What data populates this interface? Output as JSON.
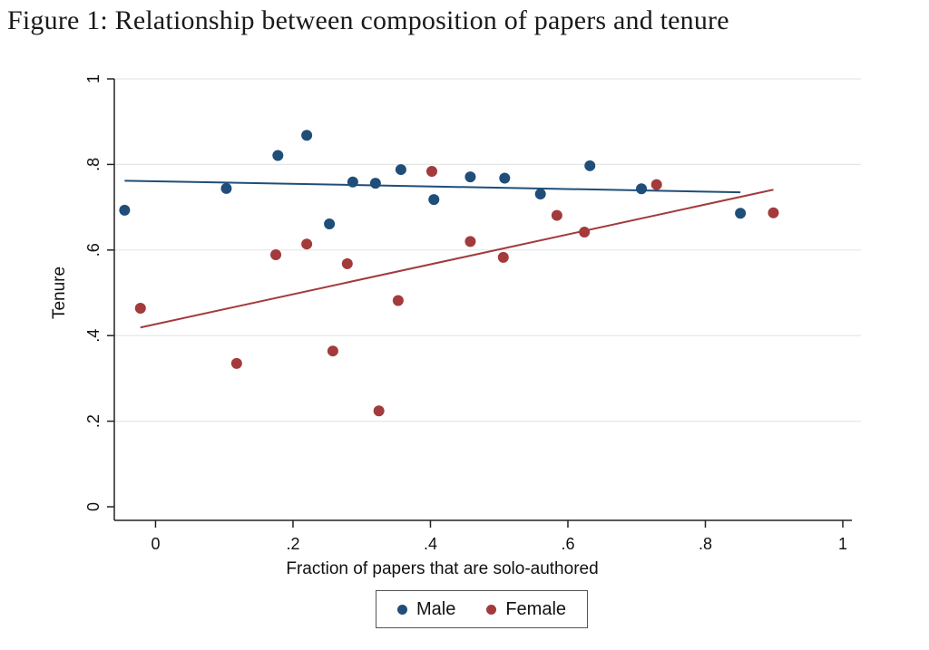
{
  "figure": {
    "title": "Figure 1: Relationship between composition of papers and tenure"
  },
  "chart_data": {
    "type": "scatter",
    "title": "Figure 1: Relationship between composition of papers and tenure",
    "xlabel": "Fraction of papers that are solo-authored",
    "ylabel": "Tenure",
    "xlim": [
      -0.06,
      1.0
    ],
    "ylim": [
      0,
      1.0
    ],
    "xticks": [
      0,
      0.2,
      0.4,
      0.6,
      0.8,
      1
    ],
    "xtick_labels": [
      "0",
      ".2",
      ".4",
      ".6",
      ".8",
      "1"
    ],
    "yticks": [
      0,
      0.2,
      0.4,
      0.6,
      0.8,
      1
    ],
    "ytick_labels": [
      "0",
      ".2",
      ".4",
      ".6",
      ".8",
      "1"
    ],
    "grid": true,
    "legend_position": "bottom",
    "series": [
      {
        "name": "Male",
        "color": "#1f4e79",
        "x": [
          -0.045,
          0.103,
          0.178,
          0.22,
          0.253,
          0.287,
          0.32,
          0.357,
          0.405,
          0.458,
          0.508,
          0.56,
          0.632,
          0.707,
          0.851
        ],
        "y": [
          0.693,
          0.744,
          0.821,
          0.868,
          0.661,
          0.759,
          0.756,
          0.788,
          0.718,
          0.771,
          0.768,
          0.731,
          0.797,
          0.743,
          0.686
        ],
        "fit": {
          "x": [
            -0.045,
            0.851
          ],
          "y": [
            0.762,
            0.735
          ]
        }
      },
      {
        "name": "Female",
        "color": "#a33a3c",
        "x": [
          -0.022,
          0.118,
          0.175,
          0.22,
          0.258,
          0.279,
          0.325,
          0.353,
          0.402,
          0.458,
          0.506,
          0.584,
          0.624,
          0.729,
          0.899
        ],
        "y": [
          0.464,
          0.335,
          0.589,
          0.614,
          0.364,
          0.568,
          0.224,
          0.482,
          0.784,
          0.62,
          0.583,
          0.681,
          0.642,
          0.753,
          0.687
        ],
        "fit": {
          "x": [
            -0.022,
            0.899
          ],
          "y": [
            0.419,
            0.741
          ]
        }
      }
    ]
  }
}
